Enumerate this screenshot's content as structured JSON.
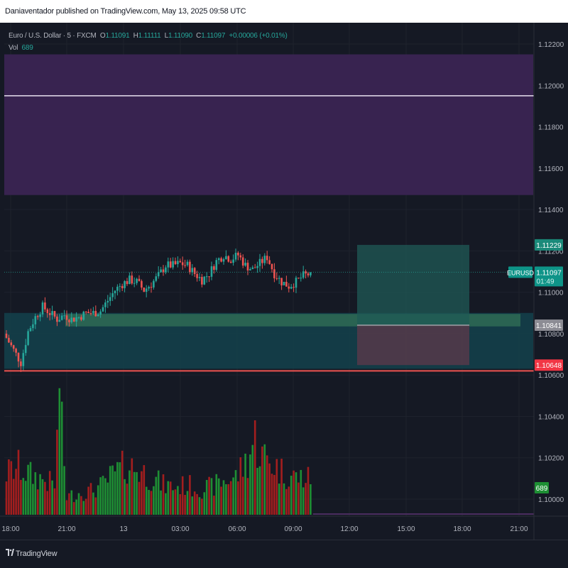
{
  "header": {
    "publisher_line": "Daniaventador published on TradingView.com, May 13, 2025 09:58 UTC"
  },
  "legend": {
    "symbol_line": "Euro / U.S. Dollar · 5 · FXCM",
    "open_label": "O",
    "open": "1.11091",
    "high_label": "H",
    "high": "1.11111",
    "low_label": "L",
    "low": "1.11090",
    "close_label": "C",
    "close": "1.11097",
    "change": "+0.00006 (+0.01%)",
    "vol_label": "Vol",
    "vol_value": "689"
  },
  "footer": {
    "brand": "TradingView"
  },
  "colors": {
    "background": "#151924",
    "up": "#26a69a",
    "down": "#ef5350",
    "vol_up": "#1e8f34",
    "vol_down": "#a31e1e",
    "resistance_zone": "#3a2453",
    "support_zone": "#133f4a",
    "support_line": "#ef5350"
  },
  "chart_data": {
    "type": "candlestick",
    "symbol": "EURUSD",
    "interval": "5",
    "yaxis": {
      "ticks": [
        "1.12200",
        "1.12000",
        "1.11800",
        "1.11600",
        "1.11400",
        "1.11200",
        "1.11000",
        "1.10800",
        "1.10600",
        "1.10400",
        "1.10200",
        "1.10000"
      ],
      "range": [
        1.099,
        1.123
      ]
    },
    "xaxis": {
      "ticks": [
        "18:00",
        "21:00",
        "13",
        "03:00",
        "06:00",
        "09:00",
        "12:00",
        "15:00",
        "18:00",
        "21:00"
      ]
    },
    "price_labels": {
      "target": "1.11229",
      "symbol_tag": "EURUSD",
      "last": "1.11097",
      "countdown": "01:49",
      "entry": "1.10841",
      "stop": "1.10648",
      "volume": "689"
    },
    "levels": {
      "resistance_zone": [
        1.1147,
        1.1215
      ],
      "resistance_line": 1.1195,
      "support_zone": [
        1.1063,
        1.109
      ],
      "support_line": 1.1062,
      "last_price": 1.11097
    },
    "position_tool": {
      "entry": 1.10841,
      "target": 1.11229,
      "stop": 1.10648
    },
    "anchors": {
      "close": [
        [
          0,
          1.1078
        ],
        [
          3,
          1.1072
        ],
        [
          6,
          1.1066
        ],
        [
          9,
          1.1081
        ],
        [
          12,
          1.1088
        ],
        [
          15,
          1.1093
        ],
        [
          18,
          1.109
        ],
        [
          21,
          1.1087
        ],
        [
          24,
          1.1089
        ],
        [
          27,
          1.1087
        ],
        [
          30,
          1.1088
        ],
        [
          33,
          1.109
        ],
        [
          36,
          1.109
        ],
        [
          39,
          1.1091
        ],
        [
          42,
          1.1096
        ],
        [
          45,
          1.1101
        ],
        [
          48,
          1.1104
        ],
        [
          51,
          1.1106
        ],
        [
          54,
          1.1105
        ],
        [
          57,
          1.1101
        ],
        [
          60,
          1.1104
        ],
        [
          63,
          1.1108
        ],
        [
          66,
          1.1113
        ],
        [
          69,
          1.1113
        ],
        [
          72,
          1.1114
        ],
        [
          75,
          1.1113
        ],
        [
          78,
          1.1109
        ],
        [
          81,
          1.1106
        ],
        [
          84,
          1.1109
        ],
        [
          87,
          1.1115
        ],
        [
          90,
          1.1118
        ],
        [
          93,
          1.1116
        ],
        [
          96,
          1.1118
        ],
        [
          99,
          1.1113
        ],
        [
          102,
          1.1111
        ],
        [
          105,
          1.1114
        ],
        [
          108,
          1.1117
        ],
        [
          111,
          1.1109
        ],
        [
          114,
          1.1105
        ],
        [
          117,
          1.1103
        ],
        [
          120,
          1.1105
        ],
        [
          123,
          1.1108
        ],
        [
          126,
          1.1109
        ]
      ]
    },
    "volume_anchors": [
      [
        0,
        420
      ],
      [
        5,
        480
      ],
      [
        10,
        400
      ],
      [
        15,
        360
      ],
      [
        20,
        300
      ],
      [
        22,
        1150
      ],
      [
        25,
        180
      ],
      [
        30,
        220
      ],
      [
        35,
        240
      ],
      [
        40,
        300
      ],
      [
        45,
        420
      ],
      [
        50,
        500
      ],
      [
        55,
        450
      ],
      [
        60,
        380
      ],
      [
        65,
        300
      ],
      [
        70,
        280
      ],
      [
        75,
        300
      ],
      [
        80,
        260
      ],
      [
        85,
        280
      ],
      [
        90,
        340
      ],
      [
        95,
        380
      ],
      [
        100,
        560
      ],
      [
        103,
        780
      ],
      [
        105,
        620
      ],
      [
        110,
        520
      ],
      [
        115,
        420
      ],
      [
        120,
        380
      ],
      [
        126,
        360
      ]
    ]
  }
}
